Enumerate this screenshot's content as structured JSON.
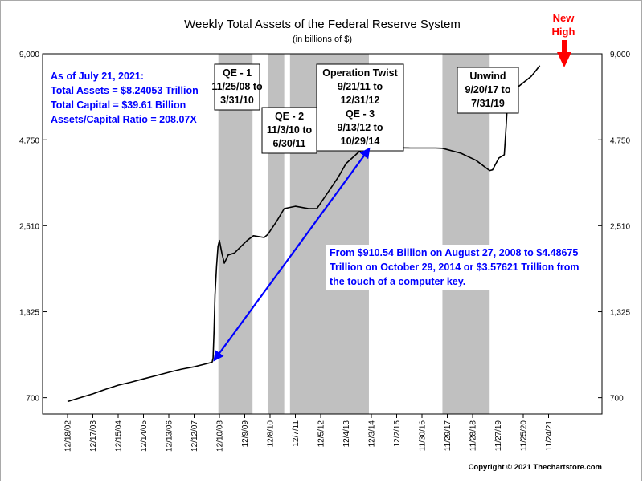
{
  "chart_data": {
    "type": "line",
    "title": "Weekly Total Assets of the Federal Reserve System",
    "subtitle": "(in billions of $)",
    "y_scale": "log",
    "ylim": [
      620,
      9000
    ],
    "y_ticks": [
      700,
      1325,
      2510,
      4750,
      9000
    ],
    "y_tick_labels": [
      "700",
      "1,325",
      "2,510",
      "4,750",
      "9,000"
    ],
    "x_tick_labels": [
      "12/18/02",
      "12/17/03",
      "12/15/04",
      "12/14/05",
      "12/13/06",
      "12/12/07",
      "12/10/08",
      "12/9/09",
      "12/8/10",
      "12/7/11",
      "12/5/12",
      "12/4/13",
      "12/3/14",
      "12/2/15",
      "11/30/16",
      "11/29/17",
      "11/28/18",
      "11/27/19",
      "11/25/20",
      "11/24/21"
    ],
    "grid": false,
    "series": [
      {
        "values_note_x_is_date": true,
        "points": [
          [
            "2002-12-18",
            680
          ],
          [
            "2003-06-18",
            700
          ],
          [
            "2003-12-17",
            720
          ],
          [
            "2004-06-16",
            745
          ],
          [
            "2004-12-15",
            768
          ],
          [
            "2005-06-15",
            785
          ],
          [
            "2005-12-14",
            805
          ],
          [
            "2006-06-14",
            825
          ],
          [
            "2006-12-13",
            845
          ],
          [
            "2007-06-13",
            865
          ],
          [
            "2007-12-12",
            880
          ],
          [
            "2008-08-27",
            910.54
          ],
          [
            "2008-09-10",
            940
          ],
          [
            "2008-09-24",
            1150
          ],
          [
            "2008-10-08",
            1500
          ],
          [
            "2008-10-29",
            1850
          ],
          [
            "2008-11-19",
            2150
          ],
          [
            "2008-12-10",
            2250
          ],
          [
            "2009-01-14",
            2050
          ],
          [
            "2009-02-18",
            1900
          ],
          [
            "2009-04-15",
            2020
          ],
          [
            "2009-07-15",
            2050
          ],
          [
            "2009-10-14",
            2150
          ],
          [
            "2010-01-13",
            2250
          ],
          [
            "2010-04-14",
            2330
          ],
          [
            "2010-09-15",
            2300
          ],
          [
            "2010-11-03",
            2350
          ],
          [
            "2011-03-16",
            2600
          ],
          [
            "2011-06-29",
            2850
          ],
          [
            "2011-12-07",
            2900
          ],
          [
            "2012-06-13",
            2850
          ],
          [
            "2012-10-10",
            2850
          ],
          [
            "2013-03-13",
            3200
          ],
          [
            "2013-08-14",
            3600
          ],
          [
            "2013-12-04",
            3980
          ],
          [
            "2014-06-11",
            4350
          ],
          [
            "2014-10-29",
            4486.75
          ],
          [
            "2015-06-10",
            4480
          ],
          [
            "2016-06-15",
            4470
          ],
          [
            "2017-06-14",
            4470
          ],
          [
            "2017-09-20",
            4460
          ],
          [
            "2018-06-13",
            4300
          ],
          [
            "2019-01-16",
            4080
          ],
          [
            "2019-07-31",
            3780
          ],
          [
            "2019-09-11",
            3800
          ],
          [
            "2019-12-11",
            4150
          ],
          [
            "2020-02-26",
            4250
          ],
          [
            "2020-03-25",
            5300
          ],
          [
            "2020-04-15",
            6400
          ],
          [
            "2020-06-10",
            7100
          ],
          [
            "2020-09-16",
            7050
          ],
          [
            "2020-12-09",
            7300
          ],
          [
            "2021-03-17",
            7600
          ],
          [
            "2021-05-19",
            7900
          ],
          [
            "2021-07-21",
            8240.53
          ]
        ]
      }
    ],
    "shaded_periods": [
      {
        "start": "2008-11-25",
        "end": "2010-03-31",
        "label_lines": [
          "QE - 1",
          "11/25/08 to",
          "3/31/10"
        ]
      },
      {
        "start": "2010-11-03",
        "end": "2011-06-30",
        "label_lines": [
          "QE - 2",
          "11/3/10 to",
          "6/30/11"
        ]
      },
      {
        "start": "2011-09-21",
        "end": "2014-10-29",
        "label_lines": [
          "Operation Twist",
          "9/21/11 to",
          "12/31/12",
          "QE - 3",
          "9/13/12 to",
          "10/29/14"
        ]
      },
      {
        "start": "2017-09-20",
        "end": "2019-07-31",
        "label_lines": [
          "Unwind",
          "9/20/17 to",
          "7/31/19"
        ]
      }
    ],
    "info_box_lines": [
      "As of July 21, 2021:",
      "Total Assets = $8.24053 Trillion",
      "Total Capital  = $39.61 Billion",
      "Assets/Capital Ratio = 208.07X"
    ],
    "arrow_annotation": {
      "from": [
        "2008-08-27",
        910.54
      ],
      "to": [
        "2014-10-29",
        4486.75
      ],
      "text_lines": [
        "From $910.54 Billion on August 27, 2008 to $4.48675",
        "Trillion on October 29, 2014 or $3.57621 Trillion from",
        "the touch of a computer key."
      ]
    },
    "callout": {
      "lines": [
        "New",
        "High"
      ],
      "color": "#ff0000"
    },
    "copyright": "Copyright © 2021 Thechartstore.com",
    "colors": {
      "line": "#000000",
      "shade": "#c0c0c0",
      "annotation": "#0000ff",
      "callout": "#ff0000"
    }
  }
}
